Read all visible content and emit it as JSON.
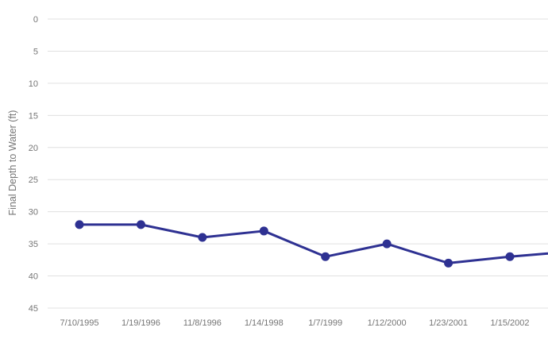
{
  "chart_data": {
    "type": "line",
    "title": "",
    "xlabel": "",
    "ylabel": "Final Depth to Water (ft)",
    "categories": [
      "7/10/1995",
      "1/19/1996",
      "11/8/1996",
      "1/14/1998",
      "1/7/1999",
      "1/12/2000",
      "1/23/2001",
      "1/15/2002"
    ],
    "series": [
      {
        "name": "Final Depth to Water",
        "values": [
          32,
          32,
          34,
          33,
          37,
          35,
          38,
          37
        ]
      }
    ],
    "clipped_segment_end_value": 36.5,
    "y_ticks": [
      0,
      5,
      10,
      15,
      20,
      25,
      30,
      35,
      40,
      45
    ],
    "ylim": [
      0,
      45
    ],
    "y_axis_direction": "depth-increases-downward",
    "grid": "horizontal-only",
    "legend_position": "none",
    "marker_shape": "circle",
    "colors": {
      "line": "#2e3192",
      "marker": "#2e3192",
      "gridline": "#e0e0e0",
      "tick_text": "#757575",
      "background": "#ffffff"
    }
  }
}
